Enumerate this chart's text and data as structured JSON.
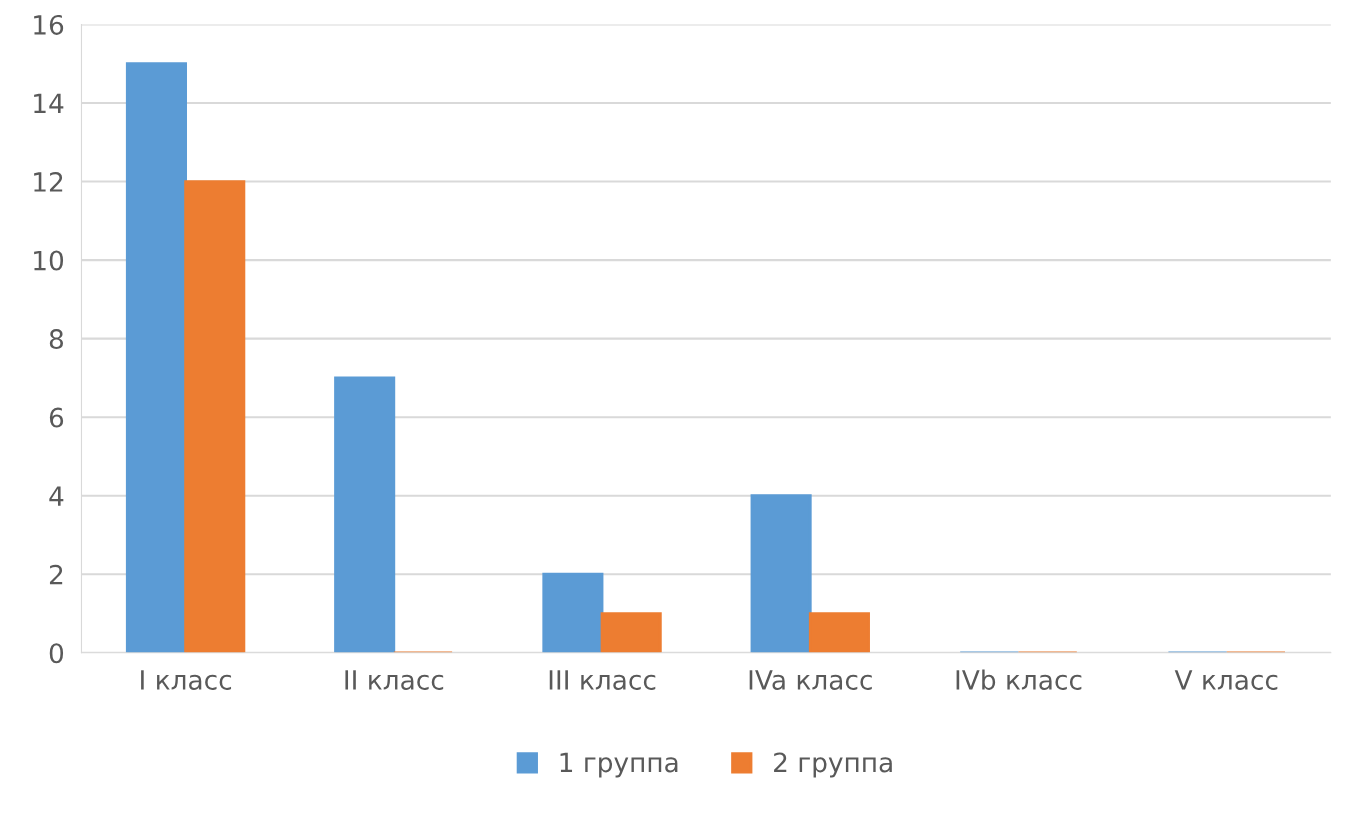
{
  "chart_data": {
    "type": "bar",
    "categories": [
      "I класс",
      "II класс",
      "III класс",
      "IVa класс",
      "IVb класс",
      "V класс"
    ],
    "series": [
      {
        "name": "1 группа",
        "color": "#5b9bd5",
        "values": [
          15,
          7,
          2,
          4,
          0,
          0
        ]
      },
      {
        "name": "2 группа",
        "color": "#ed7d31",
        "values": [
          12,
          0,
          1,
          1,
          0,
          0
        ]
      }
    ],
    "ylim": [
      0,
      16
    ],
    "yticks": [
      0,
      2,
      4,
      6,
      8,
      10,
      12,
      14,
      16
    ],
    "grid": "y",
    "legend": "bottom"
  }
}
